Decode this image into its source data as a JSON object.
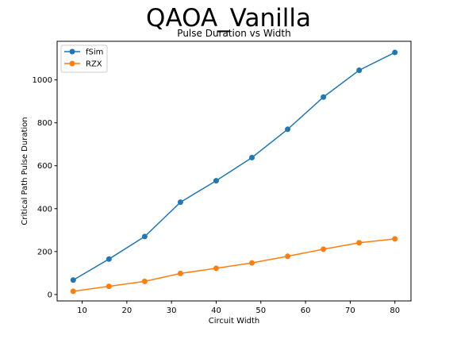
{
  "chart_data": {
    "type": "line",
    "suptitle": "QAOA_Vanilla",
    "title": "Pulse Duration vs Width",
    "xlabel": "Circuit Width",
    "ylabel": "Critical Path Pulse Duration",
    "x": [
      8,
      16,
      24,
      32,
      40,
      48,
      56,
      64,
      72,
      80
    ],
    "xlim": [
      4.4,
      83.6
    ],
    "ylim": [
      -30,
      1180
    ],
    "xticks": [
      10,
      20,
      30,
      40,
      50,
      60,
      70,
      80
    ],
    "yticks": [
      0,
      200,
      400,
      600,
      800,
      1000
    ],
    "grid": false,
    "legend": "upper-left",
    "series": [
      {
        "name": "fSim",
        "color": "#1f77b4",
        "values": [
          67,
          165,
          270,
          430,
          530,
          638,
          770,
          920,
          1045,
          1128
        ]
      },
      {
        "name": "RZX",
        "color": "#ff7f0e",
        "values": [
          15,
          38,
          61,
          98,
          122,
          147,
          178,
          211,
          241,
          259
        ]
      }
    ]
  }
}
